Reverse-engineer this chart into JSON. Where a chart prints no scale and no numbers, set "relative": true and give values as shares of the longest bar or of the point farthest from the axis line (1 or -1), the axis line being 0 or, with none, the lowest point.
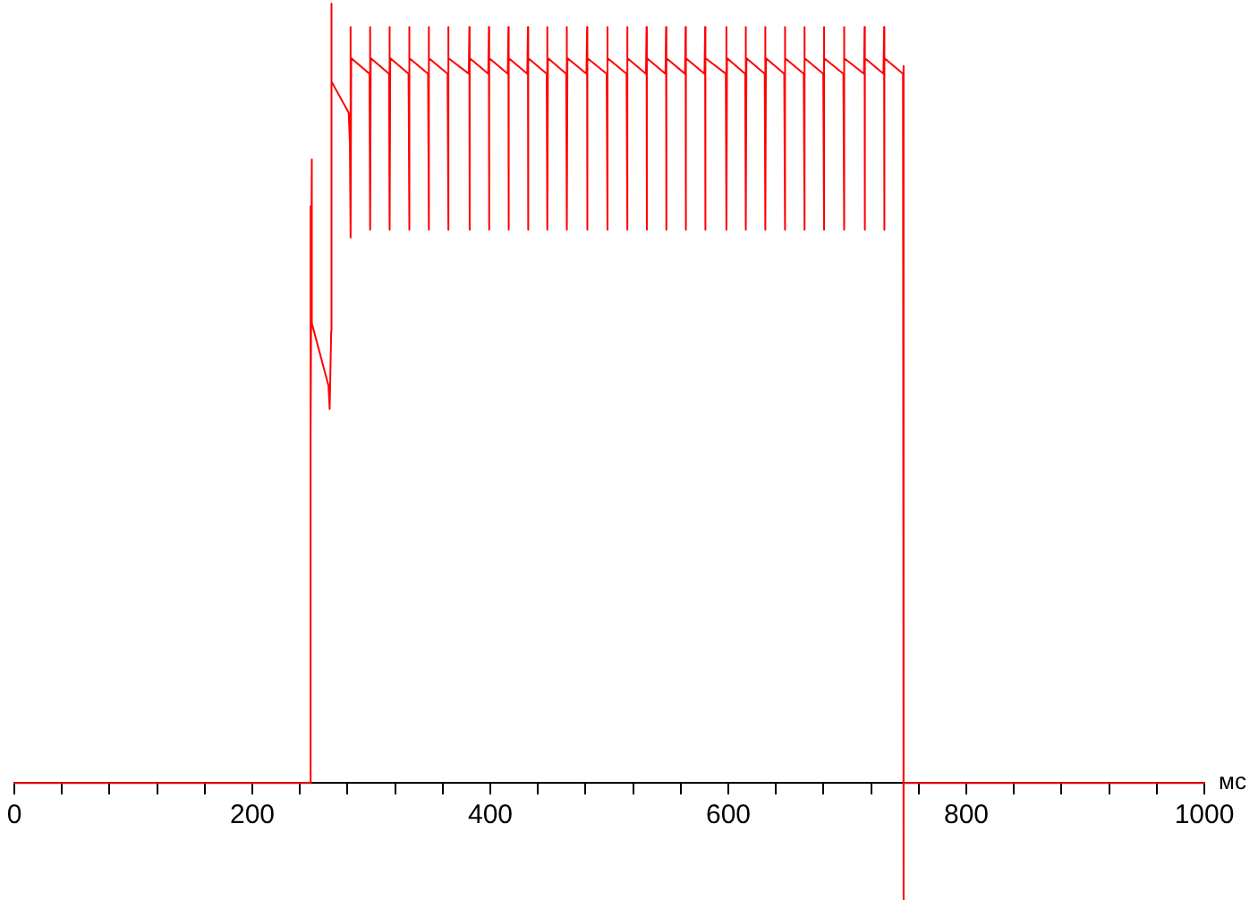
{
  "chart_data": {
    "type": "line",
    "relative": true,
    "xlabel": "мс",
    "xlim": [
      0,
      1000
    ],
    "xticks": [
      0,
      {
        "value": 40,
        "label": null
      },
      {
        "value": 80,
        "label": null
      },
      {
        "value": 120,
        "label": null
      },
      {
        "value": 160,
        "label": null
      },
      200,
      {
        "value": 240,
        "label": null
      },
      {
        "value": 280,
        "label": null
      },
      {
        "value": 320,
        "label": null
      },
      {
        "value": 360,
        "label": null
      },
      400,
      {
        "value": 440,
        "label": null
      },
      {
        "value": 480,
        "label": null
      },
      {
        "value": 520,
        "label": null
      },
      {
        "value": 560,
        "label": null
      },
      600,
      {
        "value": 640,
        "label": null
      },
      {
        "value": 680,
        "label": null
      },
      {
        "value": 720,
        "label": null
      },
      {
        "value": 760,
        "label": null
      },
      800,
      {
        "value": 840,
        "label": null
      },
      {
        "value": 880,
        "label": null
      },
      {
        "value": 920,
        "label": null
      },
      {
        "value": 960,
        "label": null
      },
      1000
    ],
    "series": [
      {
        "color": "#ff0000",
        "x": [
          0,
          249,
          249,
          249,
          250,
          250,
          264,
          265,
          266.3,
          266.3,
          266.3,
          267,
          281,
          282,
          282.6,
          282.6,
          283.1,
          298.5,
          299.0,
          299.0,
          299.5,
          314.9,
          315.4,
          315.4,
          315.9,
          331.3,
          331.8,
          331.8,
          332.3,
          347.7,
          348.2,
          348.2,
          348.7,
          364.1,
          364.6,
          364.6,
          365.1,
          381.9,
          382.4,
          382.4,
          382.9,
          398.3,
          398.8,
          398.8,
          399.3,
          414.7,
          415.2,
          415.2,
          415.7,
          431.1,
          431.6,
          431.6,
          432.1,
          447.4,
          447.9,
          447.9,
          448.4,
          463.8,
          464.3,
          464.3,
          464.8,
          480.8,
          481.3,
          481.3,
          481.8,
          497.8,
          498.3,
          498.3,
          498.8,
          514.5,
          515.0,
          515.0,
          515.5,
          530.8,
          531.3,
          531.3,
          531.8,
          547.2,
          547.7,
          547.7,
          548.2,
          563.6,
          564.1,
          564.1,
          564.6,
          580.0,
          580.5,
          580.5,
          581.0,
          597.9,
          598.4,
          598.4,
          598.9,
          614.2,
          614.7,
          614.7,
          615.2,
          630.6,
          631.1,
          631.1,
          631.6,
          647.0,
          647.5,
          647.5,
          648.0,
          663.4,
          663.9,
          663.9,
          664.4,
          679.8,
          680.3,
          680.3,
          680.8,
          696.7,
          697.2,
          697.2,
          697.7,
          714.0,
          714.5,
          714.5,
          715.0,
          730.4,
          730.9,
          730.9,
          731.4,
          746.8,
          747.3,
          747.3,
          747.3,
          1000
        ],
        "values": [
          0,
          0,
          0.74,
          0.45,
          0.8,
          0.59,
          0.51,
          0.48,
          0.58,
          1.0,
          0.58,
          0.9,
          0.86,
          0.82,
          0.97,
          0.7,
          0.93,
          0.91,
          0.97,
          0.71,
          0.93,
          0.91,
          0.97,
          0.71,
          0.93,
          0.91,
          0.97,
          0.71,
          0.93,
          0.91,
          0.97,
          0.71,
          0.93,
          0.91,
          0.97,
          0.71,
          0.93,
          0.91,
          0.97,
          0.71,
          0.93,
          0.91,
          0.97,
          0.71,
          0.93,
          0.91,
          0.97,
          0.71,
          0.93,
          0.91,
          0.97,
          0.71,
          0.93,
          0.91,
          0.97,
          0.71,
          0.93,
          0.91,
          0.97,
          0.71,
          0.93,
          0.91,
          0.97,
          0.71,
          0.93,
          0.91,
          0.97,
          0.71,
          0.93,
          0.91,
          0.97,
          0.71,
          0.93,
          0.91,
          0.97,
          0.71,
          0.93,
          0.91,
          0.97,
          0.71,
          0.93,
          0.91,
          0.97,
          0.71,
          0.93,
          0.91,
          0.97,
          0.71,
          0.93,
          0.91,
          0.97,
          0.71,
          0.93,
          0.91,
          0.97,
          0.71,
          0.93,
          0.91,
          0.97,
          0.71,
          0.93,
          0.91,
          0.97,
          0.71,
          0.93,
          0.91,
          0.97,
          0.71,
          0.93,
          0.91,
          0.97,
          0.71,
          0.93,
          0.91,
          0.97,
          0.71,
          0.93,
          0.91,
          0.97,
          0.71,
          0.93,
          0.91,
          0.97,
          0.71,
          0.93,
          0.91,
          0.92,
          -0.15,
          0,
          0
        ]
      }
    ]
  }
}
